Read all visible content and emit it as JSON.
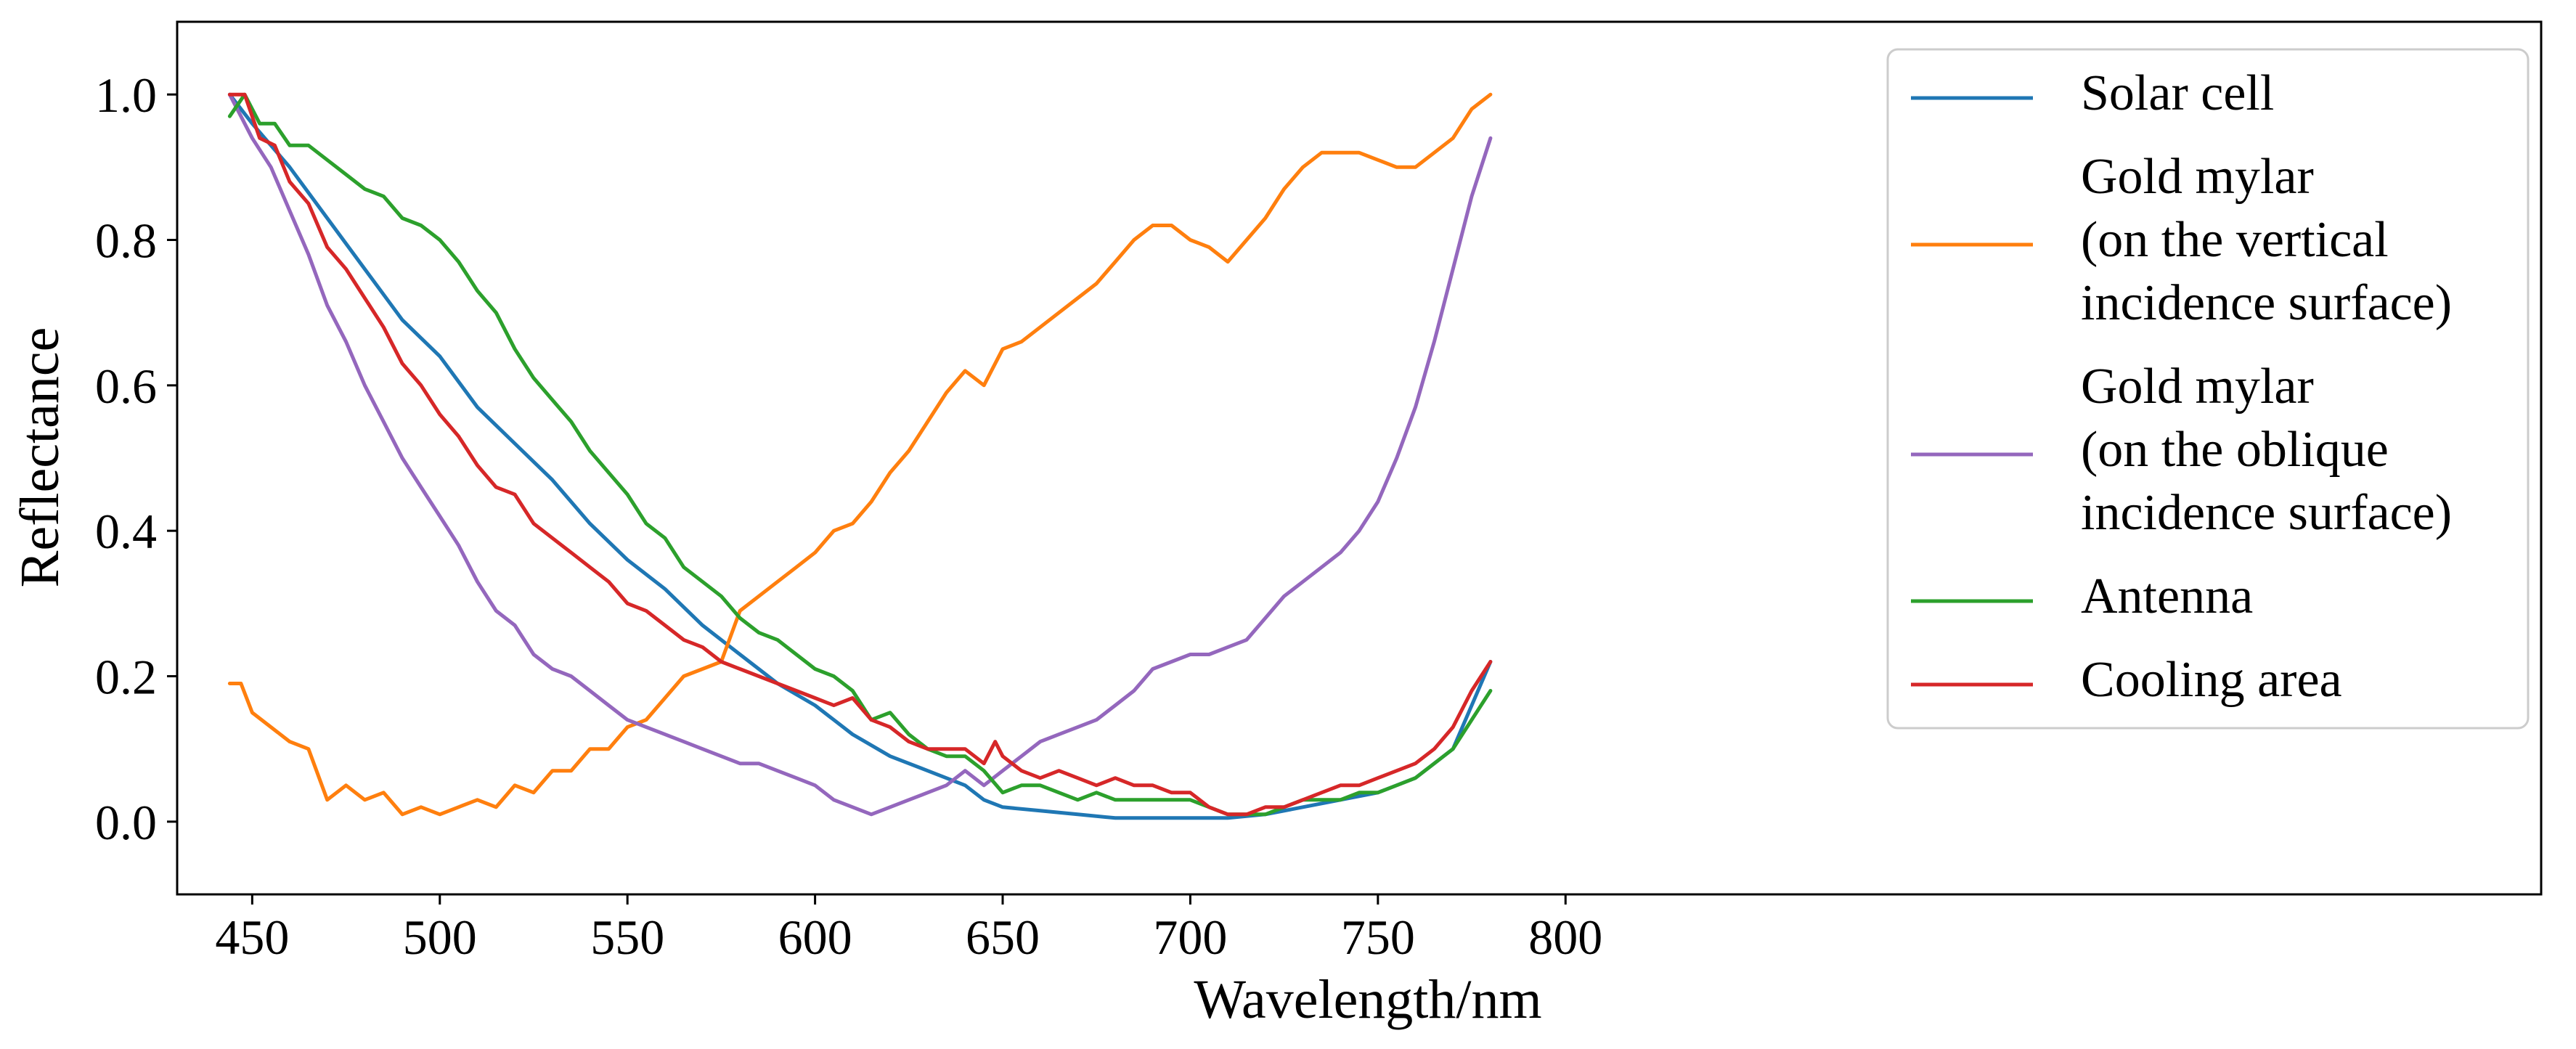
{
  "chart_data": {
    "type": "line",
    "xlabel": "Wavelength/nm",
    "ylabel": "Reflectance",
    "xlim": [
      430,
      1060
    ],
    "ylim": [
      -0.1,
      1.1
    ],
    "xticks": [
      450,
      500,
      550,
      600,
      650,
      700,
      750,
      800
    ],
    "yticks": [
      0.0,
      0.2,
      0.4,
      0.6,
      0.8,
      1.0
    ],
    "xtick_labels": [
      "450",
      "500",
      "550",
      "600",
      "650",
      "700",
      "750",
      "800"
    ],
    "ytick_labels": [
      "0.0",
      "0.2",
      "0.4",
      "0.6",
      "0.8",
      "1.0"
    ],
    "grid": false,
    "legend_position": "top-right",
    "series": [
      {
        "name": "Solar cell",
        "legend_lines": [
          "Solar cell"
        ],
        "color": "#1f77b4",
        "x": [
          444,
          450,
          460,
          470,
          480,
          490,
          500,
          510,
          520,
          530,
          540,
          550,
          560,
          570,
          580,
          590,
          600,
          610,
          620,
          630,
          640,
          645,
          650,
          660,
          670,
          680,
          690,
          700,
          710,
          720,
          730,
          740,
          750,
          760,
          770,
          780
        ],
        "y": [
          1.0,
          0.96,
          0.9,
          0.83,
          0.76,
          0.69,
          0.64,
          0.57,
          0.52,
          0.47,
          0.41,
          0.36,
          0.32,
          0.27,
          0.23,
          0.19,
          0.16,
          0.12,
          0.09,
          0.07,
          0.05,
          0.03,
          0.02,
          0.015,
          0.01,
          0.005,
          0.005,
          0.005,
          0.005,
          0.01,
          0.02,
          0.03,
          0.04,
          0.06,
          0.1,
          0.22
        ]
      },
      {
        "name": "Gold mylar (on the vertical incidence surface)",
        "legend_lines": [
          "Gold mylar",
          "(on the vertical",
          "incidence surface)"
        ],
        "color": "#ff7f0e",
        "x": [
          444,
          447,
          450,
          455,
          460,
          465,
          470,
          475,
          480,
          485,
          490,
          495,
          500,
          505,
          510,
          515,
          520,
          525,
          530,
          535,
          540,
          545,
          550,
          555,
          560,
          565,
          570,
          575,
          580,
          585,
          590,
          595,
          600,
          605,
          610,
          615,
          620,
          625,
          630,
          635,
          640,
          645,
          650,
          655,
          660,
          665,
          670,
          675,
          680,
          685,
          690,
          695,
          700,
          705,
          710,
          715,
          720,
          725,
          730,
          735,
          740,
          745,
          750,
          755,
          760,
          765,
          770,
          775,
          780
        ],
        "y": [
          0.19,
          0.19,
          0.15,
          0.13,
          0.11,
          0.1,
          0.03,
          0.05,
          0.03,
          0.04,
          0.01,
          0.02,
          0.01,
          0.02,
          0.03,
          0.02,
          0.05,
          0.04,
          0.07,
          0.07,
          0.1,
          0.1,
          0.13,
          0.14,
          0.17,
          0.2,
          0.21,
          0.22,
          0.29,
          0.31,
          0.33,
          0.35,
          0.37,
          0.4,
          0.41,
          0.44,
          0.48,
          0.51,
          0.55,
          0.59,
          0.62,
          0.6,
          0.65,
          0.66,
          0.68,
          0.7,
          0.72,
          0.74,
          0.77,
          0.8,
          0.82,
          0.82,
          0.8,
          0.79,
          0.77,
          0.8,
          0.83,
          0.87,
          0.9,
          0.92,
          0.92,
          0.92,
          0.91,
          0.9,
          0.9,
          0.92,
          0.94,
          0.98,
          1.0
        ]
      },
      {
        "name": "Gold mylar (on the oblique incidence surface)",
        "legend_lines": [
          "Gold mylar",
          "(on the oblique",
          "incidence surface)"
        ],
        "color": "#9467bd",
        "x": [
          444,
          450,
          455,
          460,
          465,
          470,
          475,
          480,
          485,
          490,
          495,
          500,
          505,
          510,
          515,
          520,
          525,
          530,
          535,
          540,
          545,
          550,
          555,
          560,
          565,
          570,
          575,
          580,
          585,
          590,
          595,
          600,
          605,
          610,
          615,
          620,
          625,
          630,
          635,
          640,
          645,
          650,
          655,
          660,
          665,
          670,
          675,
          680,
          685,
          690,
          695,
          700,
          705,
          710,
          715,
          720,
          725,
          730,
          735,
          740,
          745,
          750,
          755,
          760,
          765,
          770,
          775,
          780
        ],
        "y": [
          1.0,
          0.94,
          0.9,
          0.84,
          0.78,
          0.71,
          0.66,
          0.6,
          0.55,
          0.5,
          0.46,
          0.42,
          0.38,
          0.33,
          0.29,
          0.27,
          0.23,
          0.21,
          0.2,
          0.18,
          0.16,
          0.14,
          0.13,
          0.12,
          0.11,
          0.1,
          0.09,
          0.08,
          0.08,
          0.07,
          0.06,
          0.05,
          0.03,
          0.02,
          0.01,
          0.02,
          0.03,
          0.04,
          0.05,
          0.07,
          0.05,
          0.07,
          0.09,
          0.11,
          0.12,
          0.13,
          0.14,
          0.16,
          0.18,
          0.21,
          0.22,
          0.23,
          0.23,
          0.24,
          0.25,
          0.28,
          0.31,
          0.33,
          0.35,
          0.37,
          0.4,
          0.44,
          0.5,
          0.57,
          0.66,
          0.76,
          0.86,
          0.94
        ]
      },
      {
        "name": "Antenna",
        "legend_lines": [
          "Antenna"
        ],
        "color": "#2ca02c",
        "x": [
          444,
          448,
          452,
          456,
          460,
          465,
          470,
          475,
          480,
          485,
          490,
          495,
          500,
          505,
          510,
          515,
          520,
          525,
          530,
          535,
          540,
          545,
          550,
          555,
          560,
          565,
          570,
          575,
          580,
          585,
          590,
          595,
          600,
          605,
          610,
          615,
          620,
          625,
          630,
          635,
          640,
          645,
          650,
          655,
          660,
          665,
          670,
          675,
          680,
          685,
          690,
          695,
          700,
          705,
          710,
          715,
          720,
          725,
          730,
          735,
          740,
          745,
          750,
          755,
          760,
          765,
          770,
          775,
          780
        ],
        "y": [
          0.97,
          1.0,
          0.96,
          0.96,
          0.93,
          0.93,
          0.91,
          0.89,
          0.87,
          0.86,
          0.83,
          0.82,
          0.8,
          0.77,
          0.73,
          0.7,
          0.65,
          0.61,
          0.58,
          0.55,
          0.51,
          0.48,
          0.45,
          0.41,
          0.39,
          0.35,
          0.33,
          0.31,
          0.28,
          0.26,
          0.25,
          0.23,
          0.21,
          0.2,
          0.18,
          0.14,
          0.15,
          0.12,
          0.1,
          0.09,
          0.09,
          0.07,
          0.04,
          0.05,
          0.05,
          0.04,
          0.03,
          0.04,
          0.03,
          0.03,
          0.03,
          0.03,
          0.03,
          0.02,
          0.01,
          0.01,
          0.01,
          0.02,
          0.03,
          0.03,
          0.03,
          0.04,
          0.04,
          0.05,
          0.06,
          0.08,
          0.1,
          0.14,
          0.18
        ]
      },
      {
        "name": "Cooling area",
        "legend_lines": [
          "Cooling area"
        ],
        "color": "#d62728",
        "x": [
          444,
          448,
          452,
          456,
          460,
          465,
          470,
          475,
          480,
          485,
          490,
          495,
          500,
          505,
          510,
          515,
          520,
          525,
          530,
          535,
          540,
          545,
          550,
          555,
          560,
          565,
          570,
          575,
          580,
          585,
          590,
          595,
          600,
          605,
          610,
          615,
          620,
          625,
          630,
          635,
          640,
          645,
          648,
          650,
          655,
          660,
          665,
          670,
          675,
          680,
          685,
          690,
          695,
          700,
          705,
          710,
          715,
          720,
          725,
          730,
          735,
          740,
          745,
          750,
          755,
          760,
          765,
          770,
          775,
          780
        ],
        "y": [
          1.0,
          1.0,
          0.94,
          0.93,
          0.88,
          0.85,
          0.79,
          0.76,
          0.72,
          0.68,
          0.63,
          0.6,
          0.56,
          0.53,
          0.49,
          0.46,
          0.45,
          0.41,
          0.39,
          0.37,
          0.35,
          0.33,
          0.3,
          0.29,
          0.27,
          0.25,
          0.24,
          0.22,
          0.21,
          0.2,
          0.19,
          0.18,
          0.17,
          0.16,
          0.17,
          0.14,
          0.13,
          0.11,
          0.1,
          0.1,
          0.1,
          0.08,
          0.11,
          0.09,
          0.07,
          0.06,
          0.07,
          0.06,
          0.05,
          0.06,
          0.05,
          0.05,
          0.04,
          0.04,
          0.02,
          0.01,
          0.01,
          0.02,
          0.02,
          0.03,
          0.04,
          0.05,
          0.05,
          0.06,
          0.07,
          0.08,
          0.1,
          0.13,
          0.18,
          0.22
        ]
      }
    ]
  }
}
